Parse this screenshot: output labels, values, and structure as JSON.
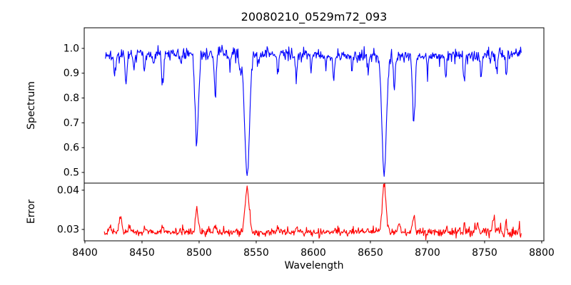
{
  "figure": {
    "title": "20080210_0529m72_093",
    "background": "#ffffff",
    "text_color": "#000000",
    "frame_color": "#000000"
  },
  "x_axis": {
    "label": "Wavelength",
    "lim": [
      8399.4,
      8801.9
    ],
    "ticks": [
      {
        "value": 8400,
        "label": "8400"
      },
      {
        "value": 8450,
        "label": "8450"
      },
      {
        "value": 8500,
        "label": "8500"
      },
      {
        "value": 8550,
        "label": "8550"
      },
      {
        "value": 8600,
        "label": "8600"
      },
      {
        "value": 8650,
        "label": "8650"
      },
      {
        "value": 8700,
        "label": "8700"
      },
      {
        "value": 8750,
        "label": "8750"
      },
      {
        "value": 8800,
        "label": "8800"
      }
    ]
  },
  "chart_data": [
    {
      "id": "spectrum",
      "type": "line",
      "ylabel": "Spectrum",
      "color": "#0000ff",
      "ylim": [
        0.457,
        1.083
      ],
      "yticks": [
        {
          "value": 1.0,
          "label": "1.0"
        },
        {
          "value": 0.9,
          "label": "0.9"
        },
        {
          "value": 0.8,
          "label": "0.8"
        },
        {
          "value": 0.7,
          "label": "0.7"
        },
        {
          "value": 0.6,
          "label": "0.6"
        },
        {
          "value": 0.5,
          "label": "0.5"
        }
      ],
      "x_start": 8418,
      "x_end": 8782,
      "x_step": 0.5,
      "continuum": 0.975,
      "noise_sigma": 0.012,
      "random_dip_probability": 0.05,
      "random_dip_max_depth": 0.055,
      "absorption_lines": [
        [
          8426,
          0.085,
          0.8
        ],
        [
          8436,
          0.115,
          0.9
        ],
        [
          8443,
          0.05,
          0.6
        ],
        [
          8452,
          0.06,
          0.7
        ],
        [
          8460,
          0.05,
          0.6
        ],
        [
          8468,
          0.13,
          0.9
        ],
        [
          8484,
          0.05,
          0.6
        ],
        [
          8498,
          0.35,
          1.5
        ],
        [
          8514,
          0.16,
          0.9
        ],
        [
          8527,
          0.05,
          0.7
        ],
        [
          8536,
          0.07,
          0.8
        ],
        [
          8542,
          0.49,
          2.1
        ],
        [
          8552,
          0.05,
          0.6
        ],
        [
          8569,
          0.08,
          0.7
        ],
        [
          8585,
          0.09,
          0.8
        ],
        [
          8598,
          0.07,
          0.7
        ],
        [
          8611,
          0.05,
          0.6
        ],
        [
          8618,
          0.09,
          0.8
        ],
        [
          8634,
          0.05,
          0.6
        ],
        [
          8648,
          0.06,
          0.7
        ],
        [
          8662,
          0.485,
          1.9
        ],
        [
          8671,
          0.14,
          0.8
        ],
        [
          8688,
          0.27,
          1.1
        ],
        [
          8700,
          0.06,
          0.7
        ],
        [
          8716,
          0.08,
          0.8
        ],
        [
          8732,
          0.1,
          0.8
        ],
        [
          8747,
          0.08,
          0.7
        ],
        [
          8760,
          0.06,
          0.6
        ],
        [
          8769,
          0.08,
          0.7
        ]
      ]
    },
    {
      "id": "error",
      "type": "line",
      "ylabel": "Error",
      "color": "#ff0000",
      "ylim": [
        0.0271,
        0.0418
      ],
      "yticks": [
        {
          "value": 0.04,
          "label": "0.04"
        },
        {
          "value": 0.03,
          "label": "0.03"
        }
      ],
      "x_start": 8417,
      "x_end": 8782,
      "x_step": 0.5,
      "baseline": 0.0293,
      "noise_sigma": 0.00045,
      "noise_boost_from": 8690,
      "noise_boost_factor": 1.6,
      "spike_probability": 0.05,
      "spike_max_height": 0.0013,
      "error_peaks": [
        [
          8422,
          0.0012,
          1.2
        ],
        [
          8431,
          0.0042,
          1.1
        ],
        [
          8439,
          0.0016,
          0.9
        ],
        [
          8452,
          0.0008,
          0.8
        ],
        [
          8468,
          0.0012,
          0.9
        ],
        [
          8498,
          0.0057,
          1.2
        ],
        [
          8514,
          0.0015,
          0.9
        ],
        [
          8542,
          0.0112,
          1.7
        ],
        [
          8569,
          0.0008,
          0.8
        ],
        [
          8585,
          0.001,
          0.8
        ],
        [
          8619,
          0.001,
          0.8
        ],
        [
          8648,
          0.0008,
          0.7
        ],
        [
          8662,
          0.0122,
          1.6
        ],
        [
          8675,
          0.0018,
          0.9
        ],
        [
          8688,
          0.0045,
          1.0
        ],
        [
          8716,
          0.0012,
          0.8
        ],
        [
          8732,
          0.0018,
          0.8
        ],
        [
          8744,
          0.0022,
          0.8
        ],
        [
          8758,
          0.0048,
          0.9
        ],
        [
          8769,
          0.0028,
          0.8
        ]
      ]
    }
  ]
}
